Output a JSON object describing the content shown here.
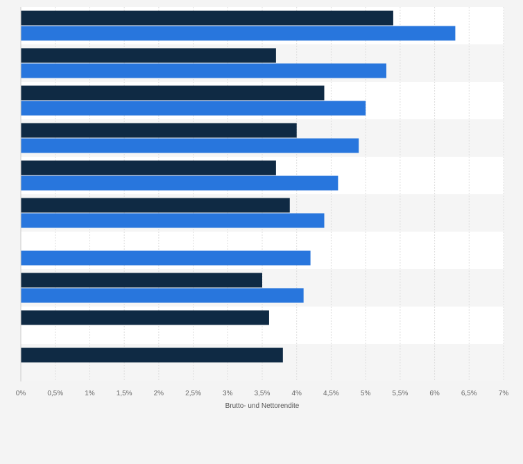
{
  "chart_data": {
    "type": "bar",
    "orientation": "horizontal",
    "categories": [
      "",
      "",
      "",
      "",
      "",
      "",
      "",
      "",
      "",
      ""
    ],
    "series": [
      {
        "color": "#0f2a44",
        "values": [
          5.4,
          3.7,
          4.4,
          4.0,
          3.7,
          3.9,
          null,
          3.5,
          3.6,
          3.8
        ]
      },
      {
        "color": "#2876dd",
        "values": [
          6.3,
          5.3,
          5.0,
          4.9,
          4.6,
          4.4,
          4.2,
          4.1,
          null,
          null
        ]
      }
    ],
    "xlim": [
      0,
      7
    ],
    "x_ticks": [
      "0%",
      "0,5%",
      "1%",
      "1,5%",
      "2%",
      "2,5%",
      "3%",
      "3,5%",
      "4%",
      "4,5%",
      "5%",
      "5,5%",
      "6%",
      "6,5%",
      "7%"
    ],
    "xlabel": "Brutto- und Nettorendite",
    "title": "",
    "legend": "none",
    "grid": true
  }
}
